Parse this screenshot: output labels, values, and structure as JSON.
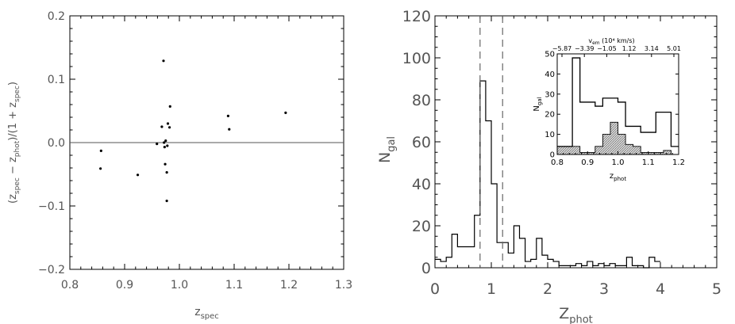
{
  "chart_data": [
    {
      "type": "scatter",
      "title": "",
      "xlabel": "z",
      "xlabel_sub": "spec",
      "ylabel_parts": [
        "(z",
        "spec",
        " − z",
        "phot",
        ")/(1 + z",
        "spec",
        ")"
      ],
      "xlim": [
        0.8,
        1.3
      ],
      "ylim": [
        -0.2,
        0.2
      ],
      "xticks": [
        "0.8",
        "0.9",
        "1.0",
        "1.1",
        "1.2",
        "1.3"
      ],
      "yticks": [
        "−0.2",
        "−0.1",
        "0.0",
        "0.1",
        "0.2"
      ],
      "hline": 0.0,
      "points": [
        {
          "x": 0.857,
          "y": -0.013
        },
        {
          "x": 0.856,
          "y": -0.041
        },
        {
          "x": 0.924,
          "y": -0.051
        },
        {
          "x": 0.959,
          "y": -0.002
        },
        {
          "x": 0.968,
          "y": 0.025
        },
        {
          "x": 0.971,
          "y": 0.129
        },
        {
          "x": 0.972,
          "y": 0.0
        },
        {
          "x": 0.973,
          "y": -0.007
        },
        {
          "x": 0.974,
          "y": -0.034
        },
        {
          "x": 0.975,
          "y": 0.003
        },
        {
          "x": 0.977,
          "y": -0.047
        },
        {
          "x": 0.977,
          "y": -0.092
        },
        {
          "x": 0.978,
          "y": -0.005
        },
        {
          "x": 0.979,
          "y": 0.03
        },
        {
          "x": 0.982,
          "y": 0.024
        },
        {
          "x": 0.983,
          "y": 0.057
        },
        {
          "x": 1.089,
          "y": 0.042
        },
        {
          "x": 1.091,
          "y": 0.021
        },
        {
          "x": 1.194,
          "y": 0.047
        }
      ]
    },
    {
      "type": "histogram",
      "title": "",
      "xlabel": "Z",
      "xlabel_sub": "phot",
      "ylabel": "N",
      "ylabel_sub": "gal",
      "xlim": [
        0,
        5
      ],
      "ylim": [
        0,
        120
      ],
      "xticks": [
        "0",
        "1",
        "2",
        "3",
        "4",
        "5"
      ],
      "yticks": [
        "0",
        "20",
        "40",
        "60",
        "80",
        "100",
        "120"
      ],
      "bin_width": 0.1,
      "bin_start": 0.0,
      "counts": [
        4,
        3,
        5,
        16,
        10,
        10,
        10,
        25,
        89,
        70,
        40,
        12,
        12,
        7,
        20,
        14,
        3,
        4,
        14,
        6,
        4,
        3,
        1,
        1,
        1,
        2,
        1,
        3,
        1,
        2,
        1,
        2,
        1,
        1,
        5,
        1,
        1,
        0,
        5,
        3
      ],
      "vlines": [
        0.8,
        1.2
      ],
      "inset": {
        "title_label": "v",
        "title_label_sub": "em",
        "title_units": "(10⁴ km/s)",
        "top_axis_ticks": [
          "−5.87",
          "−3.39",
          "−1.05",
          "1.12",
          "3.14",
          "5.01"
        ],
        "xlabel": "z",
        "xlabel_sub": "phot",
        "ylabel": "N",
        "ylabel_sub": "gal",
        "xlim": [
          0.8,
          1.2
        ],
        "ylim": [
          0,
          50
        ],
        "xticks": [
          "0.8",
          "0.9",
          "1.0",
          "1.1",
          "1.2"
        ],
        "yticks": [
          "0",
          "10",
          "20",
          "30",
          "40",
          "50"
        ],
        "bin_edges": [
          0.8,
          0.825,
          0.85,
          0.875,
          0.9,
          0.925,
          0.95,
          0.975,
          1.0,
          1.025,
          1.05,
          1.075,
          1.1,
          1.125,
          1.15,
          1.175,
          1.2
        ],
        "all_counts": [
          4,
          4,
          48,
          26,
          26,
          24,
          28,
          28,
          26,
          14,
          14,
          11,
          11,
          21,
          21,
          4
        ],
        "spec_counts": [
          4,
          4,
          4,
          1,
          1,
          4,
          10,
          16,
          10,
          5,
          4,
          1,
          1,
          1,
          2,
          0
        ]
      }
    }
  ]
}
